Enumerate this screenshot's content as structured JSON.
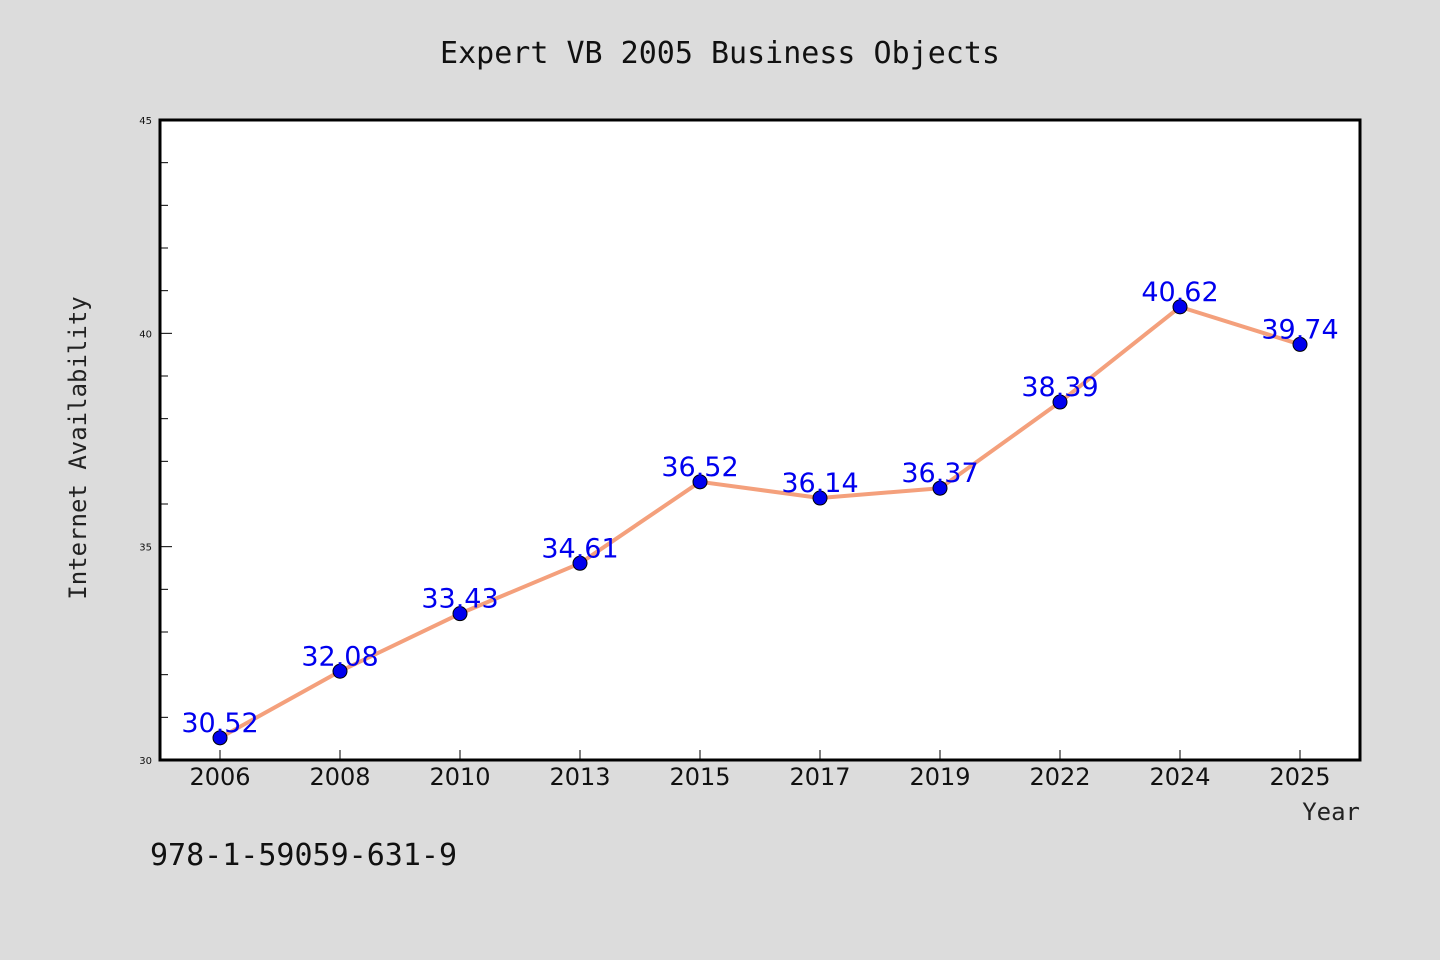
{
  "chart_data": {
    "type": "line",
    "title": "Expert VB 2005 Business Objects",
    "xlabel": "Year",
    "ylabel": "Internet Availability",
    "categories": [
      "2006",
      "2008",
      "2010",
      "2013",
      "2015",
      "2017",
      "2019",
      "2022",
      "2024",
      "2025"
    ],
    "series": [
      {
        "values": [
          30.52,
          32.08,
          33.43,
          34.61,
          36.52,
          36.14,
          36.37,
          38.39,
          40.62,
          39.74
        ]
      }
    ],
    "data_labels": [
      "30.52",
      "32.08",
      "33.43",
      "34.61",
      "36.52",
      "36.14",
      "36.37",
      "38.39",
      "40.62",
      "39.74"
    ],
    "ylim": [
      30,
      45
    ],
    "yticks": [
      30,
      35,
      40,
      45
    ],
    "grid": false,
    "legend": "none",
    "colors": {
      "line": "#f4a07c",
      "marker": "#0000ee",
      "label": "#0000ee",
      "background": "#dcdcdc",
      "plot": "#ffffff"
    }
  },
  "footer": {
    "isbn": "978-1-59059-631-9"
  }
}
